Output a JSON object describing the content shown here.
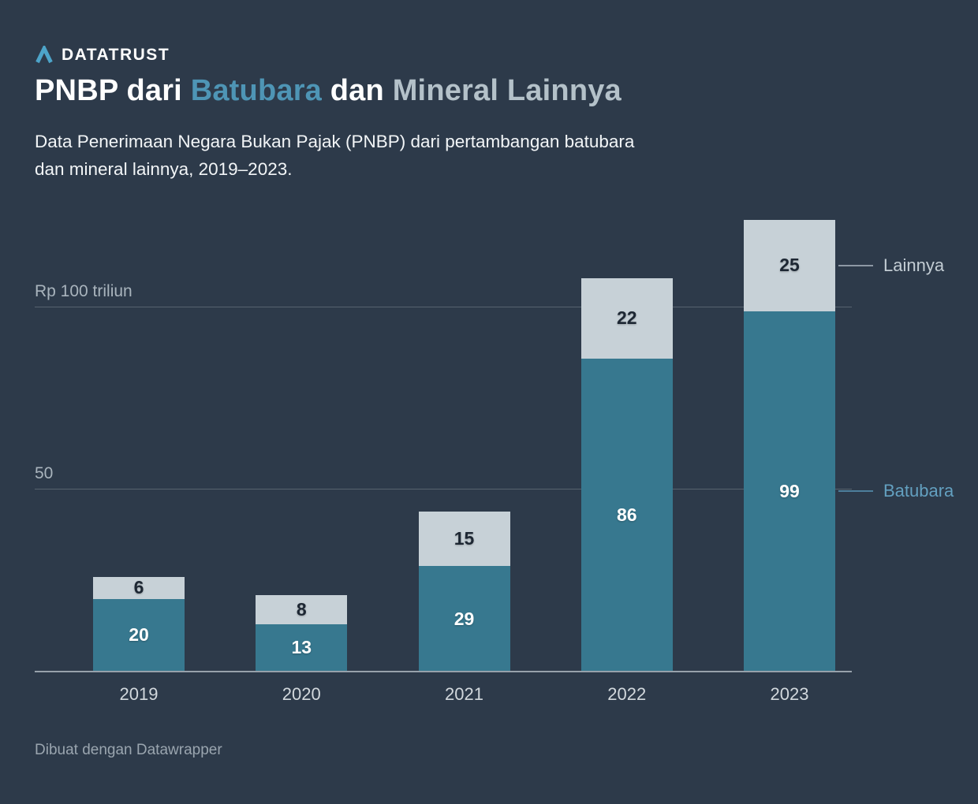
{
  "header": {
    "brand": "DATATRUST",
    "title_parts": [
      {
        "text": "PNBP dari ",
        "color": "#ffffff"
      },
      {
        "text": "Batubara",
        "color": "#4e95b5"
      },
      {
        "text": " dan ",
        "color": "#ffffff"
      },
      {
        "text": "Mineral Lainnya",
        "color": "#b4c1c9"
      }
    ],
    "subtitle_lines": [
      "Data Penerimaan Negara Bukan Pajak (PNBP) dari pertambangan batubara",
      "dan mineral lainnya, 2019–2023."
    ]
  },
  "chart_data": {
    "type": "bar",
    "stacked": true,
    "categories": [
      "2019",
      "2020",
      "2021",
      "2022",
      "2023"
    ],
    "series": [
      {
        "name": "Batubara",
        "color": "#37788f",
        "label_color": "#ffffff",
        "values": [
          20,
          13,
          29,
          86,
          99
        ]
      },
      {
        "name": "Lainnya",
        "color": "#c7d1d7",
        "label_color": "#1d2733",
        "values": [
          6,
          8,
          15,
          22,
          25
        ]
      }
    ],
    "unit_label": "Rp triliun",
    "ylim": [
      0,
      129
    ],
    "grid": true,
    "y_gridlines": [
      {
        "value": 100,
        "label": "Rp 100 triliun"
      },
      {
        "value": 50,
        "label": "50"
      }
    ],
    "legend_position": "right",
    "annotations": [
      {
        "label": "Lainnya",
        "series_index": 1,
        "text_color": "#c3cdd4",
        "line_color": "#8d98a4"
      },
      {
        "label": "Batubara",
        "series_index": 0,
        "text_color": "#63a0c0",
        "line_color": "#4d7f9c"
      }
    ]
  },
  "footer": {
    "credit": "Dibuat dengan Datawrapper"
  }
}
